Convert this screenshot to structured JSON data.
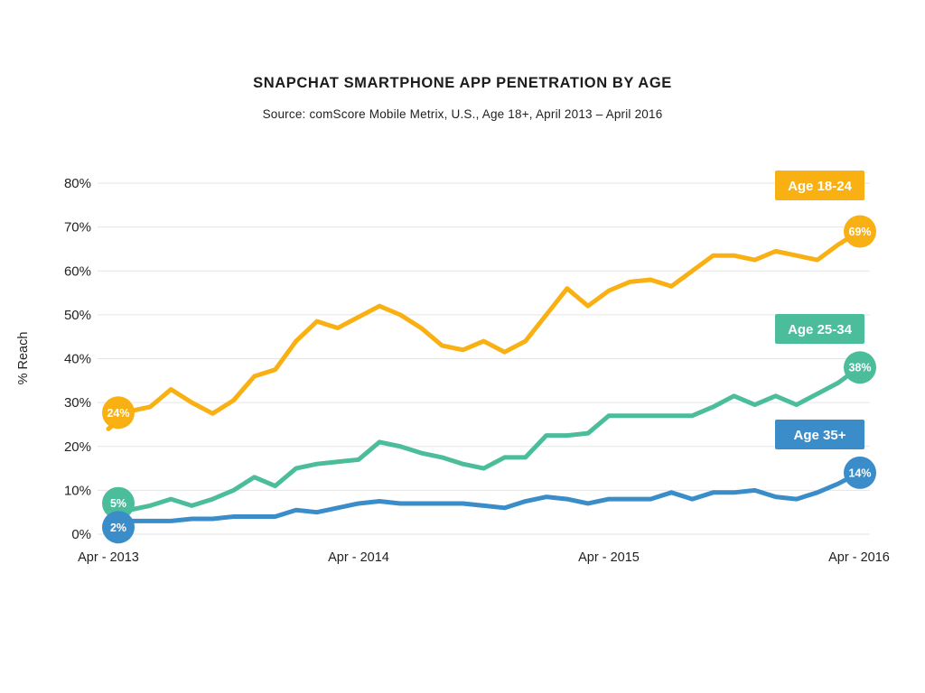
{
  "header": {
    "title": "SNAPCHAT SMARTPHONE APP PENETRATION BY AGE",
    "subtitle": "Source: comScore Mobile Metrix, U.S., Age 18+, April 2013 – April 2016"
  },
  "chart_data": {
    "type": "line",
    "title": "SNAPCHAT SMARTPHONE APP PENETRATION BY AGE",
    "subtitle": "Source: comScore Mobile Metrix, U.S., Age 18+, April 2013 – April 2016",
    "ylabel": "% Reach",
    "xlabel": "",
    "ylim": [
      0,
      80
    ],
    "ytick_step": 10,
    "ytick_suffix": "%",
    "grid": true,
    "gridline_color": "#e5e5e5",
    "background_color": "#ffffff",
    "x_unit": "month",
    "x_point_count": 37,
    "x_tick_labels": [
      "Apr - 2013",
      "Apr - 2014",
      "Apr - 2015",
      "Apr - 2016"
    ],
    "x_tick_month_indexes": [
      0,
      12,
      24,
      36
    ],
    "legend_position": "right-inside",
    "series": [
      {
        "name": "Age 18-24",
        "color": "#F9B013",
        "start_label": "24%",
        "end_label": "69%",
        "values": [
          24,
          28,
          29,
          33,
          30,
          27.5,
          30.5,
          36,
          37.5,
          44,
          48.5,
          47,
          49.5,
          52,
          50,
          47,
          43,
          42,
          44,
          41.5,
          44,
          50,
          56,
          52,
          55.5,
          57.5,
          58,
          56.5,
          60,
          63.5,
          63.5,
          62.5,
          64.5,
          63.5,
          62.5,
          66,
          69
        ]
      },
      {
        "name": "Age 25-34",
        "color": "#4CBD9B",
        "start_label": "5%",
        "end_label": "38%",
        "values": [
          5,
          5.5,
          6.5,
          8,
          6.5,
          8,
          10,
          13,
          11,
          15,
          16,
          16.5,
          17,
          21,
          20,
          18.5,
          17.5,
          16,
          15,
          17.5,
          17.5,
          22.5,
          22.5,
          23,
          27,
          27,
          27,
          27,
          27,
          29,
          31.5,
          29.5,
          31.5,
          29.5,
          32,
          34.5,
          38
        ]
      },
      {
        "name": "Age 35+",
        "color": "#3A8DC8",
        "start_label": "2%",
        "end_label": "14%",
        "values": [
          2,
          3,
          3,
          3,
          3.5,
          3.5,
          4,
          4,
          4,
          5.5,
          5,
          6,
          7,
          7.5,
          7,
          7,
          7,
          7,
          6.5,
          6,
          7.5,
          8.5,
          8,
          7,
          8,
          8,
          8,
          9.5,
          8,
          9.5,
          9.5,
          10,
          8.5,
          8,
          9.5,
          11.5,
          14
        ]
      }
    ]
  }
}
